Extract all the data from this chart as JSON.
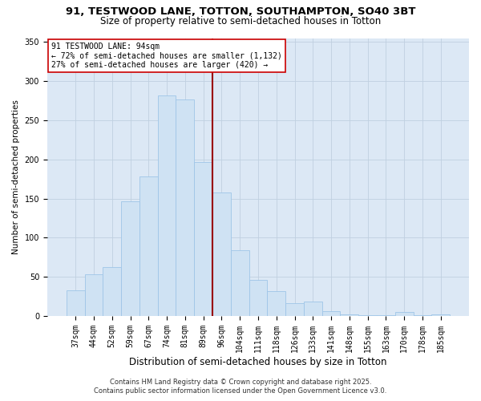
{
  "title_line1": "91, TESTWOOD LANE, TOTTON, SOUTHAMPTON, SO40 3BT",
  "title_line2": "Size of property relative to semi-detached houses in Totton",
  "xlabel": "Distribution of semi-detached houses by size in Totton",
  "ylabel": "Number of semi-detached properties",
  "bar_labels": [
    "37sqm",
    "44sqm",
    "52sqm",
    "59sqm",
    "67sqm",
    "74sqm",
    "81sqm",
    "89sqm",
    "96sqm",
    "104sqm",
    "111sqm",
    "118sqm",
    "126sqm",
    "133sqm",
    "141sqm",
    "148sqm",
    "155sqm",
    "163sqm",
    "170sqm",
    "178sqm",
    "185sqm"
  ],
  "bar_values": [
    33,
    53,
    62,
    146,
    178,
    282,
    277,
    197,
    158,
    84,
    46,
    32,
    16,
    18,
    6,
    2,
    1,
    1,
    5,
    1,
    2
  ],
  "bar_color": "#cfe2f3",
  "bar_edgecolor": "#9fc5e8",
  "vline_color": "#990000",
  "vline_pos": 7.5,
  "annotation_title": "91 TESTWOOD LANE: 94sqm",
  "annotation_line2": "← 72% of semi-detached houses are smaller (1,132)",
  "annotation_line3": "27% of semi-detached houses are larger (420) →",
  "annotation_box_edgecolor": "#cc0000",
  "annotation_box_facecolor": "#ffffff",
  "ylim": [
    0,
    355
  ],
  "yticks": [
    0,
    50,
    100,
    150,
    200,
    250,
    300,
    350
  ],
  "footer_line1": "Contains HM Land Registry data © Crown copyright and database right 2025.",
  "footer_line2": "Contains public sector information licensed under the Open Government Licence v3.0.",
  "bg_color": "#ffffff",
  "axes_bg_color": "#dce8f5",
  "grid_color": "#c0d0e0",
  "title1_fontsize": 9.5,
  "title2_fontsize": 8.5,
  "xlabel_fontsize": 8.5,
  "ylabel_fontsize": 7.5,
  "tick_fontsize": 7,
  "annot_fontsize": 7,
  "footer_fontsize": 6
}
